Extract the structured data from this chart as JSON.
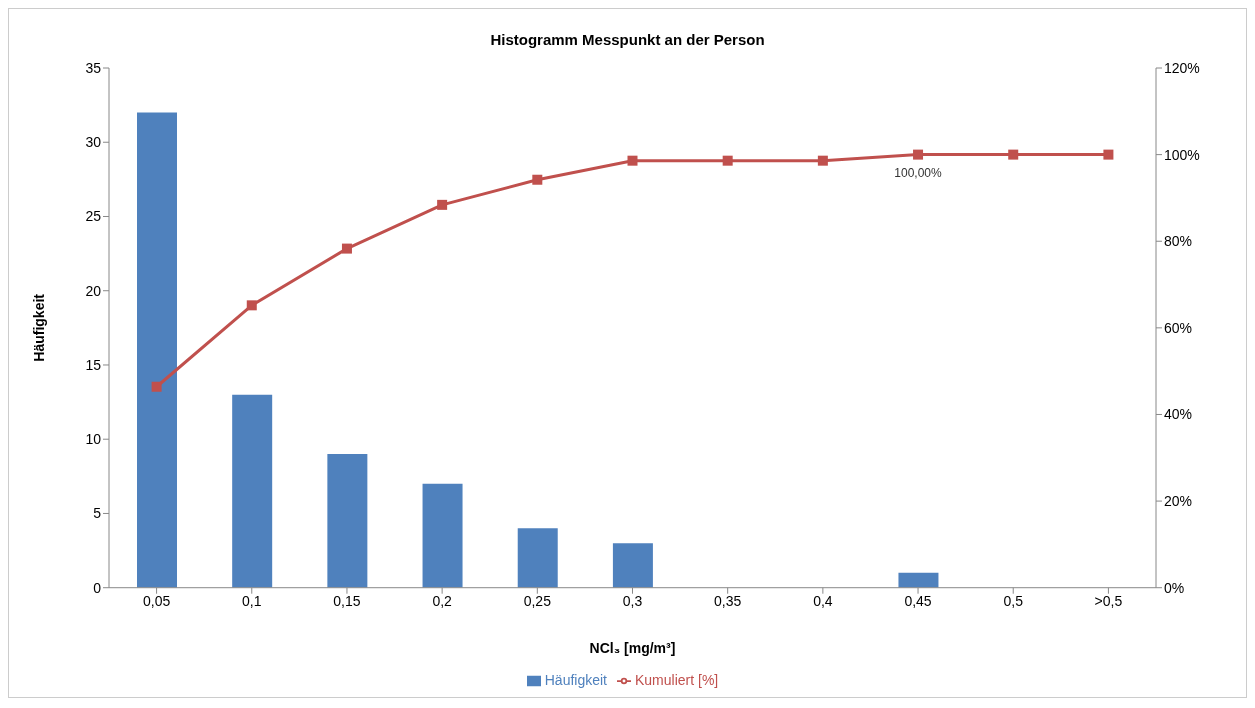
{
  "chart_data": {
    "type": "bar",
    "title": "Histogramm Messpunkt an der Person",
    "xlabel": "NCl₃ [mg/m³]",
    "ylabel": "Häufigkeit",
    "categories": [
      "0,05",
      "0,1",
      "0,15",
      "0,2",
      "0,25",
      "0,3",
      "0,35",
      "0,4",
      "0,45",
      "0,5",
      ">0,5"
    ],
    "series": [
      {
        "name": "Häufigkeit",
        "color": "#4f81bd",
        "values": [
          32,
          13,
          9,
          7,
          4,
          3,
          0,
          0,
          1,
          0,
          0
        ]
      },
      {
        "name": "Kumuliert [%]",
        "type": "line",
        "axis": "y2",
        "color": "#c0504d",
        "values": [
          46.4,
          65.2,
          78.3,
          88.4,
          94.2,
          98.6,
          98.6,
          98.6,
          100,
          100,
          100
        ],
        "value_labels": [
          null,
          null,
          null,
          null,
          null,
          null,
          null,
          null,
          "100,00%",
          null,
          null
        ]
      }
    ],
    "ylim": [
      0,
      35
    ],
    "yticks": [
      0,
      5,
      10,
      15,
      20,
      25,
      30,
      35
    ],
    "y2lim": [
      0,
      120
    ],
    "y2ticks": [
      {
        "value": 0,
        "label": "0%"
      },
      {
        "value": 20,
        "label": "20%"
      },
      {
        "value": 40,
        "label": "40%"
      },
      {
        "value": 60,
        "label": "60%"
      },
      {
        "value": 80,
        "label": "80%"
      },
      {
        "value": 100,
        "label": "100%"
      },
      {
        "value": 120,
        "label": "120%"
      }
    ],
    "grid": false,
    "legend": "bottom",
    "marker": "square",
    "line_style": "solid"
  }
}
